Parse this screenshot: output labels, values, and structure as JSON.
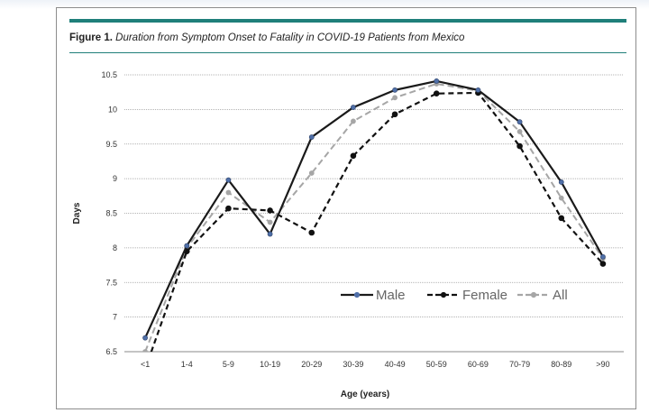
{
  "figure": {
    "label": "Figure 1.",
    "title": "Duration from Symptom Onset to Fatality in COVID-19 Patients from Mexico"
  },
  "chart_data": {
    "type": "line",
    "categories": [
      "<1",
      "1-4",
      "5-9",
      "10-19",
      "20-29",
      "30-39",
      "40-49",
      "50-59",
      "60-69",
      "70-79",
      "80-89",
      ">90"
    ],
    "ylabel": "Days",
    "xlabel": "Age (years)",
    "ylim": [
      6.5,
      10.5
    ],
    "yticks": [
      "6.5",
      "7",
      "7.5",
      "8",
      "8.5",
      "9",
      "9.5",
      "10",
      "10.5"
    ],
    "grid": true,
    "legend_position": "bottom-right",
    "series": [
      {
        "name": "Male",
        "color": "#1a1a1a",
        "marker_color": "#4f6fa8",
        "style": "solid",
        "values": [
          6.7,
          8.03,
          8.98,
          8.2,
          9.6,
          10.03,
          10.28,
          10.41,
          10.28,
          9.82,
          8.95,
          7.87
        ]
      },
      {
        "name": "Female",
        "color": "#111111",
        "marker_color": "#111111",
        "style": "dashed",
        "values": [
          6.25,
          7.95,
          8.57,
          8.54,
          8.22,
          9.33,
          9.93,
          10.23,
          10.24,
          9.47,
          8.43,
          7.77
        ]
      },
      {
        "name": "All",
        "color": "#a6a6a6",
        "marker_color": "#a6a6a6",
        "style": "dashed",
        "values": [
          6.5,
          8.0,
          8.8,
          8.37,
          9.08,
          9.83,
          10.17,
          10.37,
          10.27,
          9.68,
          8.72,
          7.85
        ]
      }
    ]
  }
}
